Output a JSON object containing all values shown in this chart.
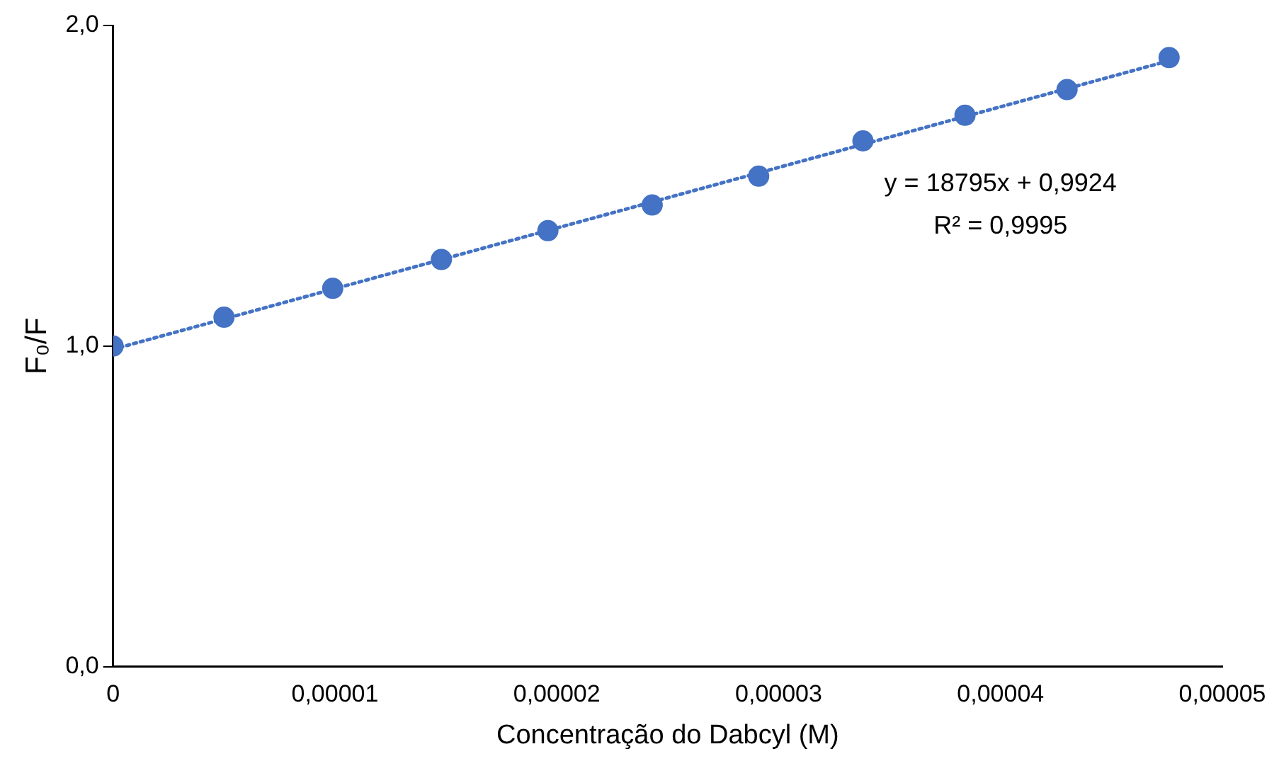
{
  "chart_data": {
    "type": "scatter",
    "xlabel": "Concentração do Dabcyl (M)",
    "ylabel": "F₀/F",
    "series": [
      {
        "type": "scatter",
        "color": "#4472c4",
        "x": [
          0,
          5e-06,
          9.9e-06,
          1.48e-05,
          1.96e-05,
          2.43e-05,
          2.91e-05,
          3.38e-05,
          3.84e-05,
          4.3e-05,
          4.76e-05
        ],
        "values": [
          1.0,
          1.09,
          1.18,
          1.27,
          1.36,
          1.44,
          1.53,
          1.64,
          1.72,
          1.8,
          1.9
        ],
        "marker": "circle"
      },
      {
        "type": "line",
        "color": "#4472c4",
        "x": [
          0,
          4.76e-05
        ],
        "values": [
          0.99,
          1.89
        ],
        "marker": "none",
        "line_style": "dotted"
      }
    ],
    "xlim": [
      0,
      5e-05
    ],
    "xticks": [
      0,
      {
        "value": 1e-05,
        "label": "0,00001"
      },
      {
        "value": 2e-05,
        "label": "0,00002"
      },
      {
        "value": 3e-05,
        "label": "0,00003"
      },
      {
        "value": 4e-05,
        "label": "0,00004"
      },
      {
        "value": 5e-05,
        "label": "0,00005"
      }
    ],
    "ylim": [
      0,
      2
    ],
    "yticks": [
      {
        "value": 0,
        "label": "0,0"
      },
      {
        "value": 1,
        "label": "1,0"
      },
      {
        "value": 2,
        "label": "2,0"
      }
    ],
    "annotations": [
      "y = 18795x + 0,9924",
      "R² = 0,9995"
    ]
  }
}
